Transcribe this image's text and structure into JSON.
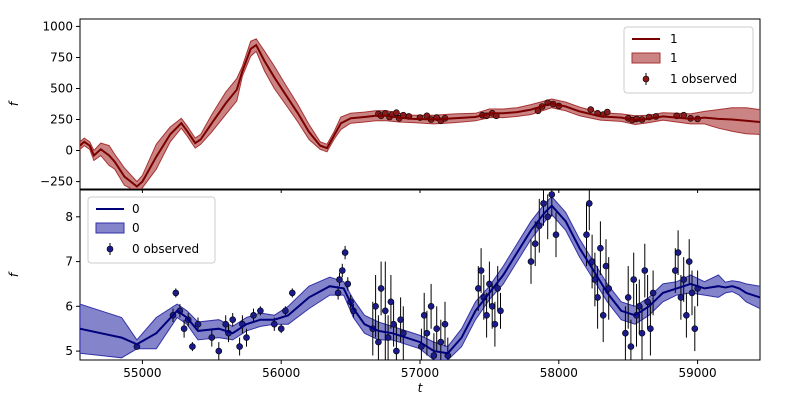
{
  "chart_data": [
    {
      "type": "line",
      "xlabel": "",
      "ylabel": "f",
      "xlim": [
        54550,
        59450
      ],
      "ylim": [
        -310,
        1060
      ],
      "yticks": [
        1000,
        750,
        500,
        250,
        0,
        -250
      ],
      "ytick_labels": [
        "1000",
        "750",
        "500",
        "250",
        "0",
        "−250"
      ],
      "legend": {
        "placement": "top-right",
        "entries": [
          {
            "kind": "line",
            "label": "1"
          },
          {
            "kind": "band",
            "label": "1"
          },
          {
            "kind": "errorbar",
            "label": "1 observed"
          }
        ]
      },
      "colors": {
        "line": "#7a0000",
        "band": "#a83232",
        "point": "#8b1a1a"
      },
      "x": [
        54550,
        54580,
        54620,
        54650,
        54700,
        54760,
        54800,
        54870,
        54960,
        55000,
        55100,
        55200,
        55280,
        55320,
        55380,
        55420,
        55500,
        55600,
        55680,
        55720,
        55780,
        55820,
        55880,
        55950,
        56020,
        56120,
        56200,
        56280,
        56330,
        56380,
        56430,
        56500,
        56600,
        56680,
        56760,
        56850,
        56950,
        57100,
        57250,
        57400,
        57500,
        57600,
        57700,
        57800,
        57950,
        58050,
        58150,
        58300,
        58450,
        58550,
        58650,
        58750,
        58850,
        58950,
        59050,
        59150,
        59250,
        59350,
        59450
      ],
      "y": [
        40,
        70,
        40,
        -40,
        10,
        -40,
        -90,
        -210,
        -290,
        -250,
        -50,
        130,
        220,
        160,
        60,
        90,
        220,
        380,
        490,
        640,
        820,
        850,
        720,
        590,
        470,
        300,
        150,
        40,
        20,
        120,
        220,
        260,
        270,
        280,
        280,
        265,
        255,
        250,
        260,
        270,
        300,
        300,
        310,
        330,
        380,
        355,
        315,
        275,
        265,
        245,
        255,
        275,
        265,
        255,
        265,
        255,
        250,
        240,
        230
      ],
      "lower": [
        10,
        40,
        10,
        -80,
        -40,
        -120,
        -150,
        -280,
        -330,
        -300,
        -150,
        70,
        180,
        120,
        20,
        50,
        150,
        290,
        400,
        600,
        760,
        800,
        640,
        500,
        390,
        230,
        90,
        10,
        -10,
        90,
        170,
        220,
        230,
        240,
        240,
        230,
        225,
        215,
        225,
        240,
        265,
        265,
        275,
        290,
        345,
        320,
        280,
        245,
        235,
        210,
        225,
        245,
        230,
        215,
        215,
        180,
        155,
        135,
        130
      ],
      "upper": [
        70,
        100,
        70,
        0,
        60,
        40,
        -30,
        -140,
        -250,
        -200,
        50,
        190,
        260,
        200,
        100,
        130,
        290,
        470,
        580,
        680,
        880,
        900,
        800,
        680,
        550,
        370,
        210,
        70,
        50,
        150,
        270,
        300,
        310,
        320,
        320,
        300,
        285,
        285,
        295,
        300,
        335,
        335,
        345,
        370,
        415,
        390,
        350,
        305,
        295,
        280,
        285,
        305,
        300,
        295,
        315,
        330,
        345,
        345,
        330
      ],
      "observed": [
        [
          56700,
          295
        ],
        [
          56720,
          280
        ],
        [
          56750,
          300
        ],
        [
          56780,
          270
        ],
        [
          56800,
          290
        ],
        [
          56830,
          305
        ],
        [
          56850,
          260
        ],
        [
          56880,
          285
        ],
        [
          56920,
          275
        ],
        [
          57000,
          265
        ],
        [
          57050,
          280
        ],
        [
          57080,
          250
        ],
        [
          57120,
          265
        ],
        [
          57150,
          240
        ],
        [
          57180,
          260
        ],
        [
          57450,
          285
        ],
        [
          57480,
          280
        ],
        [
          57520,
          300
        ],
        [
          57550,
          280
        ],
        [
          57850,
          320
        ],
        [
          57880,
          355
        ],
        [
          57920,
          385
        ],
        [
          57960,
          375
        ],
        [
          58000,
          360
        ],
        [
          58230,
          330
        ],
        [
          58280,
          300
        ],
        [
          58320,
          290
        ],
        [
          58350,
          310
        ],
        [
          58500,
          260
        ],
        [
          58530,
          245
        ],
        [
          58560,
          255
        ],
        [
          58600,
          250
        ],
        [
          58650,
          270
        ],
        [
          58700,
          275
        ],
        [
          58850,
          280
        ],
        [
          58900,
          285
        ],
        [
          58950,
          260
        ],
        [
          59000,
          255
        ]
      ]
    },
    {
      "type": "line",
      "xlabel": "t",
      "ylabel": "f",
      "xlim": [
        54550,
        59450
      ],
      "ylim": [
        4.8,
        8.6
      ],
      "xticks": [
        55000,
        56000,
        57000,
        58000,
        59000
      ],
      "xtick_labels": [
        "55000",
        "56000",
        "57000",
        "58000",
        "59000"
      ],
      "yticks": [
        8,
        7,
        6,
        5
      ],
      "ytick_labels": [
        "8",
        "7",
        "6",
        "5"
      ],
      "legend": {
        "placement": "top-left",
        "entries": [
          {
            "kind": "line",
            "label": "0"
          },
          {
            "kind": "band",
            "label": "0"
          },
          {
            "kind": "errorbar",
            "label": "0 observed"
          }
        ]
      },
      "colors": {
        "line": "#00007a",
        "band": "#3232a8",
        "point": "#1a1a8b"
      },
      "x": [
        54550,
        54700,
        54850,
        54960,
        55100,
        55250,
        55320,
        55400,
        55550,
        55650,
        55750,
        55850,
        55950,
        56050,
        56200,
        56350,
        56450,
        56520,
        56600,
        56700,
        56800,
        56900,
        57000,
        57100,
        57200,
        57300,
        57400,
        57500,
        57600,
        57700,
        57800,
        57900,
        57950,
        58050,
        58150,
        58250,
        58350,
        58450,
        58550,
        58650,
        58750,
        58850,
        58950,
        59050,
        59150,
        59200,
        59250,
        59300,
        59350,
        59450
      ],
      "y": [
        5.5,
        5.4,
        5.3,
        5.15,
        5.4,
        5.9,
        5.75,
        5.45,
        5.5,
        5.4,
        5.6,
        5.7,
        5.7,
        5.8,
        6.2,
        6.45,
        6.4,
        5.95,
        5.6,
        5.45,
        5.4,
        5.3,
        5.2,
        5.0,
        4.95,
        5.3,
        5.9,
        6.3,
        6.7,
        7.2,
        7.7,
        8.1,
        8.25,
        7.9,
        7.3,
        6.8,
        6.3,
        5.9,
        5.8,
        6.0,
        6.3,
        6.4,
        6.5,
        6.4,
        6.45,
        6.42,
        6.45,
        6.4,
        6.3,
        6.2
      ],
      "lower": [
        4.95,
        4.9,
        4.85,
        5.05,
        5.05,
        5.75,
        5.6,
        5.25,
        5.3,
        5.25,
        5.45,
        5.55,
        5.6,
        5.6,
        5.95,
        6.25,
        6.25,
        5.75,
        5.4,
        5.25,
        5.25,
        5.15,
        5.05,
        4.8,
        4.8,
        5.1,
        5.7,
        6.15,
        6.5,
        7.0,
        7.5,
        7.9,
        8.05,
        7.7,
        7.1,
        6.6,
        6.1,
        5.7,
        5.6,
        5.8,
        6.1,
        6.25,
        6.3,
        6.25,
        6.2,
        6.3,
        6.33,
        6.25,
        6.1,
        5.95
      ],
      "upper": [
        6.05,
        5.9,
        5.75,
        5.25,
        5.75,
        6.05,
        5.9,
        5.65,
        5.7,
        5.55,
        5.75,
        5.85,
        5.8,
        6.0,
        6.45,
        6.65,
        6.55,
        6.15,
        5.8,
        5.65,
        5.55,
        5.45,
        5.35,
        5.2,
        5.1,
        5.5,
        6.1,
        6.45,
        6.9,
        7.4,
        7.9,
        8.3,
        8.45,
        8.1,
        7.5,
        7.0,
        6.5,
        6.1,
        6.0,
        6.2,
        6.5,
        6.55,
        6.7,
        6.55,
        6.7,
        6.54,
        6.57,
        6.55,
        6.5,
        6.45
      ],
      "observed": [
        [
          54960,
          5.1,
          0.05
        ],
        [
          55220,
          5.8,
          0.15
        ],
        [
          55240,
          6.3,
          0.1
        ],
        [
          55270,
          5.9,
          0.15
        ],
        [
          55300,
          5.5,
          0.2
        ],
        [
          55330,
          5.7,
          0.15
        ],
        [
          55360,
          5.1,
          0.1
        ],
        [
          55400,
          5.6,
          0.15
        ],
        [
          55500,
          5.3,
          0.2
        ],
        [
          55550,
          5.0,
          0.2
        ],
        [
          55600,
          5.6,
          0.2
        ],
        [
          55620,
          5.4,
          0.2
        ],
        [
          55650,
          5.7,
          0.15
        ],
        [
          55700,
          5.1,
          0.2
        ],
        [
          55720,
          5.6,
          0.2
        ],
        [
          55750,
          5.3,
          0.2
        ],
        [
          55800,
          5.8,
          0.15
        ],
        [
          55850,
          5.9,
          0.1
        ],
        [
          55950,
          5.6,
          0.15
        ],
        [
          56000,
          5.5,
          0.1
        ],
        [
          56030,
          5.9,
          0.1
        ],
        [
          56080,
          6.3,
          0.1
        ],
        [
          56410,
          6.3,
          0.15
        ],
        [
          56420,
          6.6,
          0.15
        ],
        [
          56440,
          6.8,
          0.15
        ],
        [
          56460,
          7.2,
          0.15
        ],
        [
          56480,
          6.5,
          0.15
        ],
        [
          56500,
          6.1,
          0.15
        ],
        [
          56520,
          5.9,
          0.15
        ],
        [
          56660,
          5.5,
          0.6
        ],
        [
          56680,
          6.0,
          0.7
        ],
        [
          56700,
          5.2,
          0.6
        ],
        [
          56720,
          6.4,
          0.6
        ],
        [
          56750,
          5.9,
          1.1
        ],
        [
          56770,
          5.3,
          0.5
        ],
        [
          56790,
          6.1,
          0.6
        ],
        [
          56810,
          5.6,
          0.5
        ],
        [
          56830,
          5.0,
          0.6
        ],
        [
          56860,
          5.7,
          0.5
        ],
        [
          56880,
          5.4,
          0.6
        ],
        [
          57010,
          5.1,
          0.4
        ],
        [
          57030,
          5.8,
          0.5
        ],
        [
          57050,
          5.4,
          0.5
        ],
        [
          57080,
          6.0,
          0.5
        ],
        [
          57100,
          4.9,
          0.5
        ],
        [
          57120,
          5.5,
          0.5
        ],
        [
          57150,
          5.2,
          0.5
        ],
        [
          57180,
          5.6,
          0.5
        ],
        [
          57200,
          4.9,
          0.4
        ],
        [
          57420,
          6.4,
          0.5
        ],
        [
          57440,
          6.8,
          0.5
        ],
        [
          57460,
          6.2,
          0.5
        ],
        [
          57480,
          5.8,
          0.5
        ],
        [
          57500,
          6.5,
          0.5
        ],
        [
          57520,
          6.0,
          0.5
        ],
        [
          57540,
          5.6,
          0.5
        ],
        [
          57560,
          6.4,
          0.5
        ],
        [
          57580,
          5.9,
          0.4
        ],
        [
          57800,
          7.0,
          0.5
        ],
        [
          57830,
          7.4,
          0.5
        ],
        [
          57860,
          7.8,
          0.6
        ],
        [
          57890,
          8.3,
          0.5
        ],
        [
          57920,
          8.0,
          0.5
        ],
        [
          57950,
          8.5,
          0.5
        ],
        [
          57980,
          7.6,
          0.5
        ],
        [
          58200,
          7.6,
          0.7
        ],
        [
          58220,
          8.3,
          0.6
        ],
        [
          58240,
          7.0,
          0.6
        ],
        [
          58260,
          6.6,
          0.6
        ],
        [
          58280,
          6.2,
          0.7
        ],
        [
          58300,
          7.3,
          0.6
        ],
        [
          58320,
          5.8,
          0.6
        ],
        [
          58340,
          6.9,
          0.6
        ],
        [
          58360,
          6.4,
          0.7
        ],
        [
          58480,
          5.4,
          0.6
        ],
        [
          58500,
          6.2,
          0.7
        ],
        [
          58520,
          5.1,
          0.6
        ],
        [
          58540,
          6.6,
          0.6
        ],
        [
          58560,
          5.8,
          0.7
        ],
        [
          58580,
          6.0,
          0.6
        ],
        [
          58600,
          5.4,
          0.6
        ],
        [
          58620,
          6.8,
          0.6
        ],
        [
          58640,
          6.1,
          0.6
        ],
        [
          58660,
          5.5,
          0.6
        ],
        [
          58680,
          6.3,
          0.5
        ],
        [
          58840,
          6.8,
          0.5
        ],
        [
          58860,
          7.2,
          0.5
        ],
        [
          58880,
          6.2,
          0.5
        ],
        [
          58900,
          6.6,
          0.5
        ],
        [
          58920,
          5.8,
          0.5
        ],
        [
          58940,
          7.0,
          0.5
        ],
        [
          58960,
          6.3,
          0.5
        ],
        [
          58980,
          5.5,
          0.5
        ],
        [
          59000,
          6.4,
          0.4
        ]
      ]
    }
  ]
}
